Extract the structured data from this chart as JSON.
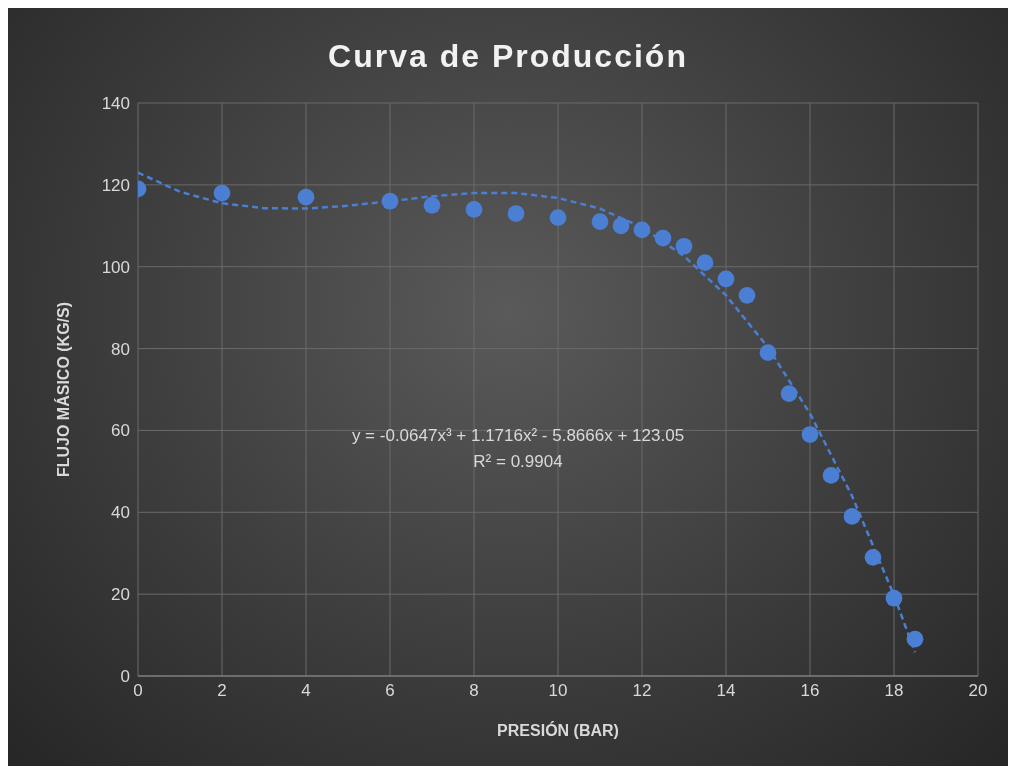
{
  "chart_data": {
    "type": "scatter",
    "title": "Curva de Producción",
    "xlabel": "PRESIÓN  (BAR)",
    "ylabel": "FLUJO MÁSICO (KG/S)",
    "xlim": [
      0,
      20
    ],
    "xticks": [
      0,
      2,
      4,
      6,
      8,
      10,
      12,
      14,
      16,
      18,
      20
    ],
    "ylim": [
      0,
      140
    ],
    "yticks": [
      0,
      20,
      40,
      60,
      80,
      100,
      120,
      140
    ],
    "grid": true,
    "marker": "circle",
    "series": [
      {
        "color": "#4a7fd4",
        "x": [
          0,
          2,
          4,
          6,
          7,
          8,
          9,
          10,
          11,
          11.5,
          12,
          12.5,
          13,
          13.5,
          14,
          14.5,
          15,
          15.5,
          16,
          16.5,
          17,
          17.5,
          18,
          18.5
        ],
        "values": [
          119,
          118,
          117,
          116,
          115,
          114,
          113,
          112,
          111,
          110,
          109,
          107,
          105,
          101,
          97,
          93,
          79,
          69,
          59,
          49,
          39,
          29,
          19,
          9
        ]
      },
      {
        "type": "line",
        "line_style": "dashed",
        "marker": "none",
        "color": "#4a7fd4",
        "x": [
          0,
          1,
          2,
          3,
          4,
          5,
          6,
          7,
          8,
          9,
          10,
          11,
          12,
          13,
          14,
          15,
          16,
          17,
          18,
          18.5
        ],
        "values": [
          123,
          118.3,
          115.5,
          114.3,
          114.2,
          114.9,
          116,
          117.2,
          118,
          118,
          116.8,
          114.2,
          109.6,
          102.6,
          93,
          80.3,
          64.1,
          44,
          19.7,
          5.8
        ]
      }
    ],
    "annotations": [
      "y = -0.0647x³ + 1.1716x² - 5.8666x + 123.05",
      "R² = 0.9904"
    ]
  }
}
